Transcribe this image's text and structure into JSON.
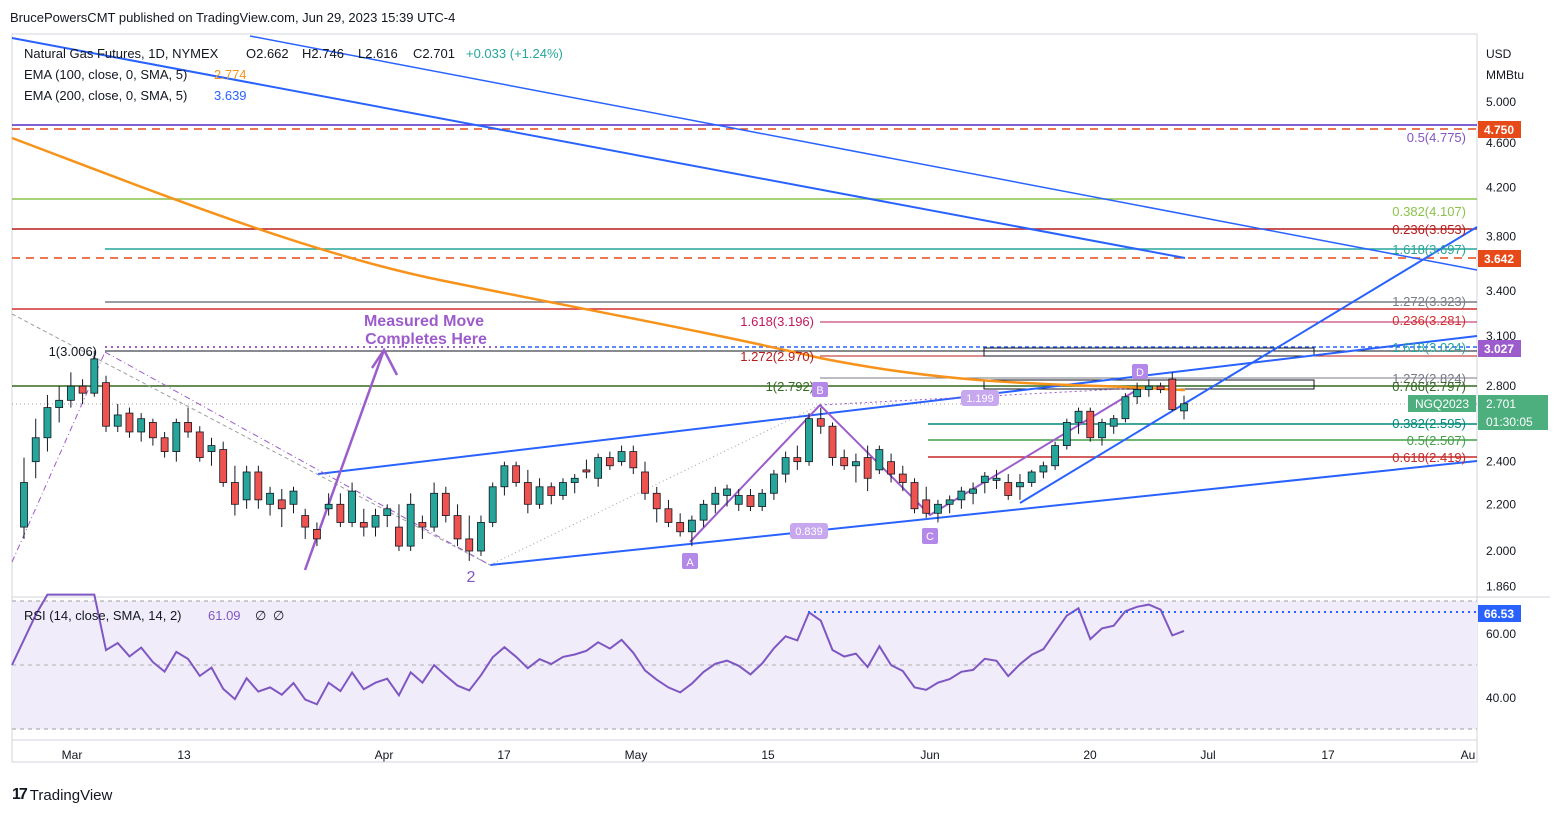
{
  "header": {
    "publisher_line": "BrucePowersCMT published on TradingView.com, Jun 29, 2023 15:39 UTC-4"
  },
  "legend": {
    "symbol": "Natural Gas Futures, 1D, NYMEX",
    "open": "O2.662",
    "high": "H2.746",
    "low": "L2.616",
    "close": "C2.701",
    "change": "+0.033 (+1.24%)",
    "ema100_label": "EMA (100, close, 0, SMA, 5)",
    "ema100_value": "2.774",
    "ema200_label": "EMA (200, close, 0, SMA, 5)",
    "ema200_value": "3.639"
  },
  "axis": {
    "currency": "USD",
    "unit": "MMBtu",
    "y_ticks": [
      "5.000",
      "4.600",
      "4.200",
      "3.800",
      "3.400",
      "3.100",
      "2.800",
      "2.400",
      "2.200",
      "2.000",
      "1.860"
    ],
    "x_ticks": [
      "Mar",
      "13",
      "Apr",
      "17",
      "May",
      "15",
      "Jun",
      "20",
      "Jul",
      "17",
      "Au"
    ],
    "rsi_ticks": [
      "60.00",
      "40.00"
    ]
  },
  "price_badges": {
    "b4750": "4.750",
    "b3642": "3.642",
    "b3027": "3.027",
    "symbol_badge": "NGQ2023",
    "last": "2.701",
    "countdown": "01:30:05",
    "rsi_badge": "66.53"
  },
  "colors": {
    "up": "#26a69a",
    "down": "#ef5350",
    "ema100": "#f7931a",
    "ema200": "#e8892b",
    "trend": "#2962ff",
    "purple": "#9c5ccc",
    "rsi": "#7e57c2"
  },
  "fib_labels": {
    "f0_5_4775": "0.5(4.775)",
    "f0_382_4107": "0.382(4.107)",
    "f0_236_3853": "0.236(3.853)",
    "f1_618_3697": "1.618(3.697)",
    "f1_272_3323": "1.272(3.323)",
    "f0_236_3281": "0.236(3.281)",
    "f1_618_3196": "1.618(3.196)",
    "f1_272_2970": "1.272(2.970)",
    "f1_618_3024": "1.618(3.024)",
    "f1_3006": "1(3.006)",
    "f1_272_2824": "1.272(2.824)",
    "f1_2792": "1(2.792)",
    "f0_786_2797": "0.786(2.797)",
    "f0_382_2595": "0.382(2.595)",
    "f0_5_2507": "0.5(2.507)",
    "f0_618_2419": "0.618(2.419)"
  },
  "annotations": {
    "measured_move_1": "Measured Move",
    "measured_move_2": "Completes Here",
    "wave2": "2",
    "point_a": "A",
    "point_b": "B",
    "point_c": "C",
    "point_d": "D",
    "ratio_0839": "0.839",
    "ratio_1199": "1.199"
  },
  "rsi": {
    "label": "RSI (14, close, SMA, 14, 2)",
    "value": "61.09",
    "empty1": "∅",
    "empty2": "∅"
  },
  "footer": {
    "brand": "TradingView"
  },
  "chart_data": {
    "type": "candlestick",
    "title": "Natural Gas Futures, 1D, NYMEX",
    "y_scale": "log",
    "ylim": [
      1.8,
      5.7
    ],
    "categories_note": "trading days from late Feb 2023 to Jun 29 2023",
    "candles": [
      [
        2.1,
        2.42,
        2.05,
        2.3
      ],
      [
        2.4,
        2.62,
        2.32,
        2.52
      ],
      [
        2.52,
        2.75,
        2.45,
        2.68
      ],
      [
        2.68,
        2.8,
        2.6,
        2.72
      ],
      [
        2.72,
        2.88,
        2.68,
        2.8
      ],
      [
        2.8,
        2.84,
        2.7,
        2.76
      ],
      [
        2.76,
        3.01,
        2.74,
        2.96
      ],
      [
        2.82,
        2.86,
        2.55,
        2.58
      ],
      [
        2.58,
        2.7,
        2.55,
        2.64
      ],
      [
        2.65,
        2.68,
        2.52,
        2.55
      ],
      [
        2.55,
        2.65,
        2.5,
        2.62
      ],
      [
        2.6,
        2.62,
        2.48,
        2.52
      ],
      [
        2.52,
        2.55,
        2.42,
        2.45
      ],
      [
        2.45,
        2.62,
        2.4,
        2.6
      ],
      [
        2.6,
        2.68,
        2.52,
        2.55
      ],
      [
        2.55,
        2.58,
        2.4,
        2.42
      ],
      [
        2.45,
        2.52,
        2.38,
        2.48
      ],
      [
        2.46,
        2.5,
        2.28,
        2.3
      ],
      [
        2.3,
        2.38,
        2.15,
        2.2
      ],
      [
        2.22,
        2.38,
        2.18,
        2.35
      ],
      [
        2.35,
        2.38,
        2.18,
        2.22
      ],
      [
        2.2,
        2.28,
        2.15,
        2.25
      ],
      [
        2.22,
        2.27,
        2.1,
        2.18
      ],
      [
        2.2,
        2.28,
        2.16,
        2.26
      ],
      [
        2.15,
        2.18,
        2.05,
        2.1
      ],
      [
        2.09,
        2.12,
        2.02,
        2.05
      ],
      [
        2.18,
        2.25,
        2.15,
        2.2
      ],
      [
        2.2,
        2.25,
        2.1,
        2.12
      ],
      [
        2.12,
        2.3,
        2.1,
        2.26
      ],
      [
        2.12,
        2.18,
        2.06,
        2.1
      ],
      [
        2.1,
        2.18,
        2.06,
        2.15
      ],
      [
        2.15,
        2.2,
        2.1,
        2.18
      ],
      [
        2.1,
        2.2,
        2.0,
        2.02
      ],
      [
        2.02,
        2.25,
        2.0,
        2.2
      ],
      [
        2.12,
        2.15,
        2.05,
        2.1
      ],
      [
        2.1,
        2.3,
        2.08,
        2.25
      ],
      [
        2.25,
        2.28,
        2.12,
        2.15
      ],
      [
        2.15,
        2.2,
        2.02,
        2.05
      ],
      [
        2.05,
        2.15,
        1.96,
        2.0
      ],
      [
        2.0,
        2.15,
        1.98,
        2.12
      ],
      [
        2.12,
        2.3,
        2.1,
        2.28
      ],
      [
        2.28,
        2.4,
        2.24,
        2.38
      ],
      [
        2.38,
        2.4,
        2.28,
        2.3
      ],
      [
        2.3,
        2.36,
        2.16,
        2.2
      ],
      [
        2.2,
        2.32,
        2.18,
        2.28
      ],
      [
        2.28,
        2.3,
        2.2,
        2.24
      ],
      [
        2.24,
        2.32,
        2.22,
        2.3
      ],
      [
        2.3,
        2.34,
        2.25,
        2.32
      ],
      [
        2.36,
        2.41,
        2.32,
        2.35
      ],
      [
        2.32,
        2.44,
        2.28,
        2.42
      ],
      [
        2.42,
        2.45,
        2.36,
        2.38
      ],
      [
        2.4,
        2.48,
        2.38,
        2.45
      ],
      [
        2.45,
        2.48,
        2.34,
        2.37
      ],
      [
        2.35,
        2.4,
        2.22,
        2.25
      ],
      [
        2.25,
        2.28,
        2.12,
        2.18
      ],
      [
        2.18,
        2.22,
        2.1,
        2.12
      ],
      [
        2.12,
        2.16,
        2.06,
        2.08
      ],
      [
        2.08,
        2.15,
        2.02,
        2.13
      ],
      [
        2.13,
        2.22,
        2.1,
        2.2
      ],
      [
        2.2,
        2.28,
        2.16,
        2.25
      ],
      [
        2.24,
        2.29,
        2.19,
        2.27
      ],
      [
        2.2,
        2.27,
        2.17,
        2.24
      ],
      [
        2.24,
        2.27,
        2.17,
        2.19
      ],
      [
        2.19,
        2.27,
        2.17,
        2.25
      ],
      [
        2.25,
        2.36,
        2.22,
        2.34
      ],
      [
        2.34,
        2.45,
        2.3,
        2.42
      ],
      [
        2.42,
        2.48,
        2.36,
        2.4
      ],
      [
        2.4,
        2.65,
        2.38,
        2.62
      ],
      [
        2.62,
        2.68,
        2.54,
        2.58
      ],
      [
        2.58,
        2.6,
        2.38,
        2.42
      ],
      [
        2.42,
        2.46,
        2.36,
        2.38
      ],
      [
        2.38,
        2.44,
        2.3,
        2.4
      ],
      [
        2.42,
        2.48,
        2.26,
        2.32
      ],
      [
        2.36,
        2.48,
        2.34,
        2.46
      ],
      [
        2.4,
        2.44,
        2.3,
        2.34
      ],
      [
        2.34,
        2.38,
        2.26,
        2.3
      ],
      [
        2.3,
        2.32,
        2.16,
        2.18
      ],
      [
        2.22,
        2.28,
        2.14,
        2.16
      ],
      [
        2.16,
        2.22,
        2.12,
        2.2
      ],
      [
        2.2,
        2.24,
        2.16,
        2.22
      ],
      [
        2.22,
        2.28,
        2.18,
        2.26
      ],
      [
        2.25,
        2.3,
        2.2,
        2.27
      ],
      [
        2.3,
        2.35,
        2.25,
        2.33
      ],
      [
        2.31,
        2.36,
        2.27,
        2.32
      ],
      [
        2.3,
        2.34,
        2.22,
        2.24
      ],
      [
        2.28,
        2.34,
        2.22,
        2.3
      ],
      [
        2.3,
        2.36,
        2.28,
        2.35
      ],
      [
        2.35,
        2.4,
        2.32,
        2.38
      ],
      [
        2.38,
        2.5,
        2.36,
        2.48
      ],
      [
        2.48,
        2.62,
        2.46,
        2.6
      ],
      [
        2.6,
        2.68,
        2.54,
        2.66
      ],
      [
        2.66,
        2.68,
        2.5,
        2.52
      ],
      [
        2.52,
        2.62,
        2.48,
        2.6
      ],
      [
        2.58,
        2.64,
        2.54,
        2.62
      ],
      [
        2.62,
        2.76,
        2.6,
        2.74
      ],
      [
        2.74,
        2.82,
        2.7,
        2.78
      ],
      [
        2.78,
        2.84,
        2.74,
        2.8
      ],
      [
        2.8,
        2.82,
        2.76,
        2.78
      ],
      [
        2.84,
        2.88,
        2.66,
        2.67
      ],
      [
        2.662,
        2.746,
        2.616,
        2.701
      ]
    ]
  }
}
